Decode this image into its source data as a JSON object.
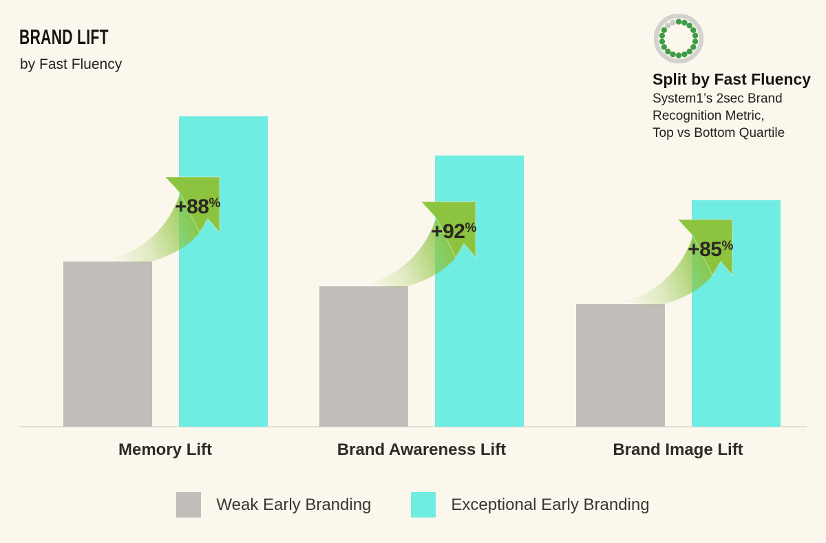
{
  "page": {
    "background": "#FBF7EC"
  },
  "header": {
    "brand_title": "BRAND LIFT",
    "brand_subtitle": "by Fast Fluency",
    "source_title": "Split by Fast Fluency",
    "source_lines": [
      "System1’s 2sec Brand",
      "Recognition Metric,",
      "Top vs Bottom Quartile"
    ]
  },
  "chart_data": {
    "type": "bar",
    "title": "BRAND LIFT",
    "categories": [
      "Memory Lift",
      "Brand Awareness Lift",
      "Brand Image Lift"
    ],
    "series": [
      {
        "name": "Weak Early Branding",
        "color": "#C1BEBA",
        "values": [
          100,
          85,
          74
        ]
      },
      {
        "name": "Exceptional Early Branding",
        "color": "#6FEDE2",
        "values": [
          188,
          164,
          137
        ]
      }
    ],
    "lift_values": [
      "+88",
      "+92",
      "+85"
    ],
    "pct": "%",
    "lift_labels": [
      "+88%",
      "+92%",
      "+85%"
    ],
    "annotation_color": "#8CC440",
    "xlabel": "",
    "ylabel": "",
    "value_note": "No y-axis shown; values are relative index units, weak bar of first group = 100",
    "grid": false,
    "legend_position": "bottom"
  },
  "legend": {
    "items": [
      {
        "label": "Weak Early Branding",
        "color": "#C1BEBA"
      },
      {
        "label": "Exceptional Early Branding",
        "color": "#6FEDE2"
      }
    ]
  },
  "colors": {
    "background": "#FBF7EC",
    "weak_bar": "#C1BEBA",
    "exceptional_bar": "#6FEDE2",
    "arrow_green": "#8CC440",
    "logo_dot_green": "#3E9B46",
    "logo_ring_gray": "#D2D2CE",
    "text_dark": "#2B2926"
  }
}
